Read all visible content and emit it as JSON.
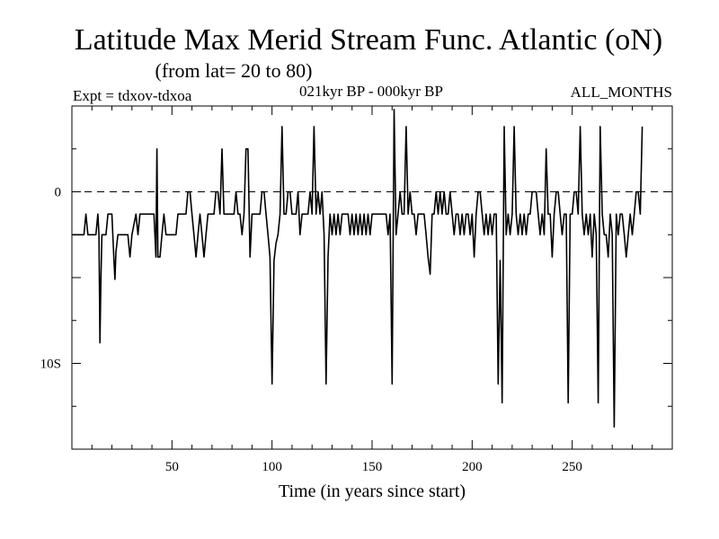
{
  "chart_data": {
    "type": "line",
    "title": "Latitude Max Merid Stream Func. Atlantic (oN)",
    "subtitle": "(from lat= 20 to 80)",
    "experiment": "Expt = tdxov-tdxoa",
    "period": "021kyr BP - 000kyr BP",
    "months": "ALL_MONTHS",
    "xlabel": "Time (in years since start)",
    "ylabel": "",
    "xlim": [
      0,
      300
    ],
    "ylim": [
      -15,
      5
    ],
    "x_ticks": [
      50,
      100,
      150,
      200,
      250
    ],
    "y_ticks": [
      {
        "value": 0,
        "label": "0"
      },
      {
        "value": -10,
        "label": "10S"
      }
    ],
    "zero_line": true,
    "series": [
      {
        "values": [
          [
            0,
            -2.5
          ],
          [
            6,
            -2.5
          ],
          [
            7,
            -1.3
          ],
          [
            8,
            -2.5
          ],
          [
            12,
            -2.5
          ],
          [
            13,
            -1.3
          ],
          [
            13.5,
            -2.5
          ],
          [
            14,
            -8.8
          ],
          [
            14.5,
            -5
          ],
          [
            15,
            -2.5
          ],
          [
            17,
            -2.5
          ],
          [
            18,
            -1.3
          ],
          [
            20,
            -1.3
          ],
          [
            21,
            -4
          ],
          [
            21.5,
            -5.1
          ],
          [
            22,
            -3.5
          ],
          [
            23,
            -2.5
          ],
          [
            28,
            -2.5
          ],
          [
            29,
            -3.8
          ],
          [
            30,
            -2.5
          ],
          [
            32,
            -1.3
          ],
          [
            33,
            -2.5
          ],
          [
            34,
            -1.3
          ],
          [
            41,
            -1.3
          ],
          [
            42,
            -3.8
          ],
          [
            42.5,
            2.5
          ],
          [
            43,
            -3.8
          ],
          [
            44,
            -3.8
          ],
          [
            45,
            -2.5
          ],
          [
            46,
            -1.3
          ],
          [
            47,
            -2.5
          ],
          [
            52,
            -2.5
          ],
          [
            53,
            -1.3
          ],
          [
            57,
            -1.3
          ],
          [
            58,
            0
          ],
          [
            59,
            0
          ],
          [
            60,
            -1.3
          ],
          [
            61,
            -2.5
          ],
          [
            62,
            -3.8
          ],
          [
            63,
            -2.5
          ],
          [
            64,
            -1.3
          ],
          [
            65,
            -2.5
          ],
          [
            66,
            -3.8
          ],
          [
            67,
            -2.5
          ],
          [
            68,
            -1.3
          ],
          [
            71,
            -1.3
          ],
          [
            72,
            0
          ],
          [
            73,
            0
          ],
          [
            74,
            -1.3
          ],
          [
            75,
            2.5
          ],
          [
            76,
            -1.3
          ],
          [
            81,
            -1.3
          ],
          [
            82,
            0
          ],
          [
            83,
            -1.3
          ],
          [
            84,
            -1.3
          ],
          [
            85,
            -2.5
          ],
          [
            86,
            -1.3
          ],
          [
            87,
            2.5
          ],
          [
            88,
            2.5
          ],
          [
            89,
            -3.8
          ],
          [
            90,
            -1.3
          ],
          [
            94,
            -1.3
          ],
          [
            95,
            0
          ],
          [
            96,
            0
          ],
          [
            97,
            -1.3
          ],
          [
            98,
            -2.5
          ],
          [
            99,
            -3.8
          ],
          [
            100,
            -11.2
          ],
          [
            101,
            -4
          ],
          [
            102,
            -3
          ],
          [
            103,
            -2.5
          ],
          [
            104,
            -1.3
          ],
          [
            105,
            3.8
          ],
          [
            106,
            -1.3
          ],
          [
            107,
            -1.3
          ],
          [
            108,
            0
          ],
          [
            109,
            0
          ],
          [
            110,
            -1.3
          ],
          [
            112,
            -1.3
          ],
          [
            113,
            0
          ],
          [
            114,
            -2.5
          ],
          [
            115,
            -1.3
          ],
          [
            118,
            -1.3
          ],
          [
            119,
            0
          ],
          [
            120,
            -1.3
          ],
          [
            121,
            3.8
          ],
          [
            122,
            -1.3
          ],
          [
            123,
            0
          ],
          [
            124,
            -1.3
          ],
          [
            125,
            0
          ],
          [
            126,
            -2.5
          ],
          [
            127,
            -11.2
          ],
          [
            128,
            -3.8
          ],
          [
            129,
            -1.3
          ],
          [
            130,
            -2.5
          ],
          [
            131,
            -1.3
          ],
          [
            132,
            -2.5
          ],
          [
            133,
            -1.3
          ],
          [
            134,
            -2.5
          ],
          [
            135,
            -1.3
          ],
          [
            138,
            -1.3
          ],
          [
            139,
            -2.5
          ],
          [
            140,
            -1.3
          ],
          [
            141,
            -2.5
          ],
          [
            142,
            -1.3
          ],
          [
            143,
            -2.5
          ],
          [
            144,
            -1.3
          ],
          [
            145,
            -2.5
          ],
          [
            146,
            -1.3
          ],
          [
            147,
            -2.5
          ],
          [
            148,
            -1.3
          ],
          [
            149,
            -2.5
          ],
          [
            150,
            -1.3
          ],
          [
            157,
            -1.3
          ],
          [
            158,
            -2.5
          ],
          [
            159,
            -1.3
          ],
          [
            160,
            -11.2
          ],
          [
            161,
            4.8
          ],
          [
            162,
            -2.5
          ],
          [
            163,
            -1.3
          ],
          [
            164,
            0
          ],
          [
            165,
            -1.3
          ],
          [
            166,
            -1.3
          ],
          [
            167,
            3.8
          ],
          [
            168,
            -1.3
          ],
          [
            169,
            0
          ],
          [
            170,
            -1.3
          ],
          [
            171,
            -1.3
          ],
          [
            172,
            -2.5
          ],
          [
            173,
            -1.3
          ],
          [
            176,
            -1.3
          ],
          [
            177,
            -2.5
          ],
          [
            178,
            -3.8
          ],
          [
            179,
            -4.8
          ],
          [
            180,
            -1.3
          ],
          [
            181,
            -1.3
          ],
          [
            182,
            0
          ],
          [
            183,
            -1.3
          ],
          [
            184,
            0
          ],
          [
            185,
            -1.3
          ],
          [
            186,
            0
          ],
          [
            187,
            -1.3
          ],
          [
            188,
            -1.3
          ],
          [
            189,
            0
          ],
          [
            190,
            -1.3
          ],
          [
            191,
            -2.5
          ],
          [
            192,
            -1.3
          ],
          [
            193,
            -1.3
          ],
          [
            194,
            -2.5
          ],
          [
            195,
            -1.3
          ],
          [
            196,
            -2.5
          ],
          [
            197,
            -1.3
          ],
          [
            198,
            -1.3
          ],
          [
            199,
            -2.5
          ],
          [
            200,
            -1.3
          ],
          [
            201,
            -3.8
          ],
          [
            202,
            -1.3
          ],
          [
            203,
            0
          ],
          [
            204,
            0
          ],
          [
            205,
            -1.3
          ],
          [
            206,
            -2.5
          ],
          [
            207,
            -1.3
          ],
          [
            208,
            -2.5
          ],
          [
            209,
            -1.3
          ],
          [
            210,
            -2.5
          ],
          [
            211,
            -1.3
          ],
          [
            212,
            -1.3
          ],
          [
            213,
            -11.2
          ],
          [
            214,
            -4
          ],
          [
            215,
            -12.3
          ],
          [
            216,
            3.8
          ],
          [
            217,
            -2.5
          ],
          [
            218,
            -1.3
          ],
          [
            219,
            -2.5
          ],
          [
            220,
            -1.3
          ],
          [
            221,
            3.8
          ],
          [
            222,
            -1.3
          ],
          [
            223,
            -2.5
          ],
          [
            224,
            -1.3
          ],
          [
            225,
            -2.5
          ],
          [
            226,
            -1.3
          ],
          [
            227,
            -2.5
          ],
          [
            228,
            -1.3
          ],
          [
            229,
            -1.3
          ],
          [
            230,
            0
          ],
          [
            232,
            0
          ],
          [
            233,
            -1.3
          ],
          [
            234,
            -2.5
          ],
          [
            235,
            -1.3
          ],
          [
            236,
            -2.5
          ],
          [
            237,
            2.5
          ],
          [
            238,
            -1.3
          ],
          [
            239,
            -1.3
          ],
          [
            240,
            -3.8
          ],
          [
            241,
            -1.3
          ],
          [
            242,
            0
          ],
          [
            243,
            0
          ],
          [
            244,
            -1.3
          ],
          [
            245,
            -2.5
          ],
          [
            246,
            -1.3
          ],
          [
            247,
            -1.3
          ],
          [
            248,
            -12.3
          ],
          [
            249,
            -1.3
          ],
          [
            250,
            -1.3
          ],
          [
            251,
            0
          ],
          [
            252,
            0
          ],
          [
            253,
            -1.3
          ],
          [
            254,
            3.8
          ],
          [
            255,
            -1.3
          ],
          [
            256,
            -2.5
          ],
          [
            257,
            -1.3
          ],
          [
            258,
            -2.5
          ],
          [
            259,
            -1.3
          ],
          [
            260,
            -3.8
          ],
          [
            261,
            -1.3
          ],
          [
            262,
            -2.5
          ],
          [
            263,
            -12.3
          ],
          [
            264,
            3.8
          ],
          [
            265,
            -1.3
          ],
          [
            266,
            -2.5
          ],
          [
            267,
            -2.5
          ],
          [
            268,
            -3.8
          ],
          [
            269,
            -1.3
          ],
          [
            270,
            -2.5
          ],
          [
            271,
            -13.7
          ],
          [
            272,
            -1.3
          ],
          [
            273,
            -2.5
          ],
          [
            274,
            -1.3
          ],
          [
            275,
            -1.3
          ],
          [
            276,
            -2.5
          ],
          [
            277,
            -3.8
          ],
          [
            278,
            -2.5
          ],
          [
            279,
            -1.3
          ],
          [
            280,
            -2.5
          ],
          [
            281,
            -1.3
          ],
          [
            282,
            0
          ],
          [
            283,
            0
          ],
          [
            284,
            -1.3
          ],
          [
            285,
            3.8
          ]
        ]
      }
    ]
  }
}
